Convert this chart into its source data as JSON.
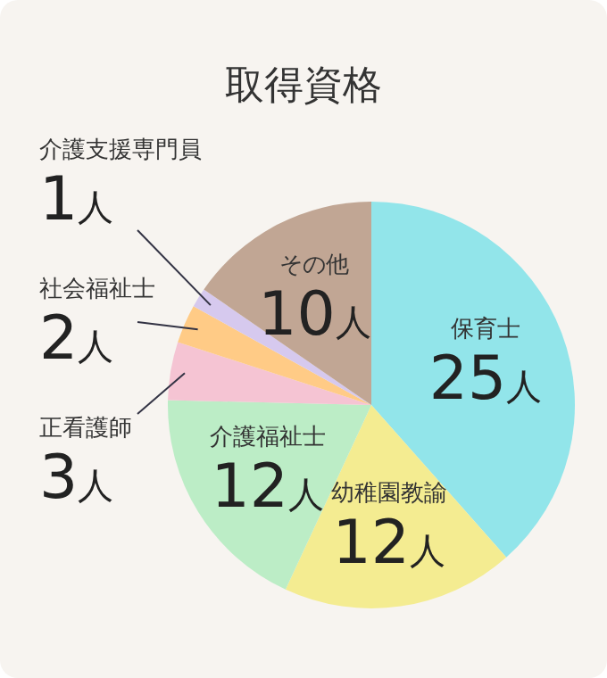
{
  "chart_data": {
    "type": "pie",
    "title": "取得資格",
    "categories": [
      "保育士",
      "幼稚園教諭",
      "介護福祉士",
      "正看護師",
      "社会福祉士",
      "介護支援専門員",
      "その他"
    ],
    "values": [
      25,
      12,
      12,
      3,
      2,
      1,
      10
    ],
    "value_labels": [
      "25人",
      "12人",
      "12人",
      "3人",
      "2人",
      "1人",
      "10人"
    ],
    "colors": [
      "#92e5ea",
      "#f4ec91",
      "#bcedc6",
      "#f5c4d3",
      "#ffcb86",
      "#d6c9ee",
      "#c1a694"
    ]
  }
}
